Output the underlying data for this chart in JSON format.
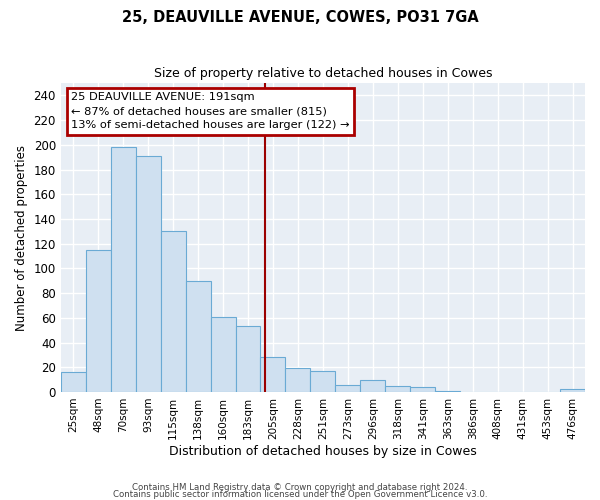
{
  "title": "25, DEAUVILLE AVENUE, COWES, PO31 7GA",
  "subtitle": "Size of property relative to detached houses in Cowes",
  "xlabel": "Distribution of detached houses by size in Cowes",
  "ylabel": "Number of detached properties",
  "bar_labels": [
    "25sqm",
    "48sqm",
    "70sqm",
    "93sqm",
    "115sqm",
    "138sqm",
    "160sqm",
    "183sqm",
    "205sqm",
    "228sqm",
    "251sqm",
    "273sqm",
    "296sqm",
    "318sqm",
    "341sqm",
    "363sqm",
    "386sqm",
    "408sqm",
    "431sqm",
    "453sqm",
    "476sqm"
  ],
  "bar_values": [
    16,
    115,
    198,
    191,
    130,
    90,
    61,
    53,
    28,
    19,
    17,
    6,
    10,
    5,
    4,
    1,
    0,
    0,
    0,
    0,
    2
  ],
  "bar_color": "#cfe0f0",
  "bar_edge_color": "#6aaad4",
  "ylim": [
    0,
    250
  ],
  "yticks": [
    0,
    20,
    40,
    60,
    80,
    100,
    120,
    140,
    160,
    180,
    200,
    220,
    240
  ],
  "vline_x": 7.68,
  "vline_color": "#9b0000",
  "annotation_title": "25 DEAUVILLE AVENUE: 191sqm",
  "annotation_line1": "← 87% of detached houses are smaller (815)",
  "annotation_line2": "13% of semi-detached houses are larger (122) →",
  "annotation_box_color": "#aa0000",
  "footer1": "Contains HM Land Registry data © Crown copyright and database right 2024.",
  "footer2": "Contains public sector information licensed under the Open Government Licence v3.0.",
  "bg_color": "#ffffff",
  "plot_bg_color": "#e8eef5",
  "grid_color": "#ffffff"
}
